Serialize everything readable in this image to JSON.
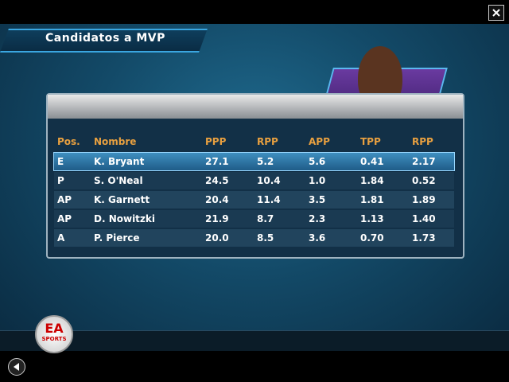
{
  "header": {
    "title": "Candidatos a MVP"
  },
  "table": {
    "columns": [
      "Pos.",
      "Nombre",
      "PPP",
      "RPP",
      "APP",
      "TPP",
      "RPP"
    ],
    "rows": [
      [
        "E",
        "K. Bryant",
        "27.1",
        "5.2",
        "5.6",
        "0.41",
        "2.17"
      ],
      [
        "P",
        "S. O'Neal",
        "24.5",
        "10.4",
        "1.0",
        "1.84",
        "0.52"
      ],
      [
        "AP",
        "K. Garnett",
        "20.4",
        "11.4",
        "3.5",
        "1.81",
        "1.89"
      ],
      [
        "AP",
        "D. Nowitzki",
        "21.9",
        "8.7",
        "2.3",
        "1.13",
        "1.40"
      ],
      [
        "A",
        "P. Pierce",
        "20.0",
        "8.5",
        "3.6",
        "0.70",
        "1.73"
      ]
    ]
  },
  "logo": {
    "main": "EA",
    "sub": "SPORTS"
  }
}
